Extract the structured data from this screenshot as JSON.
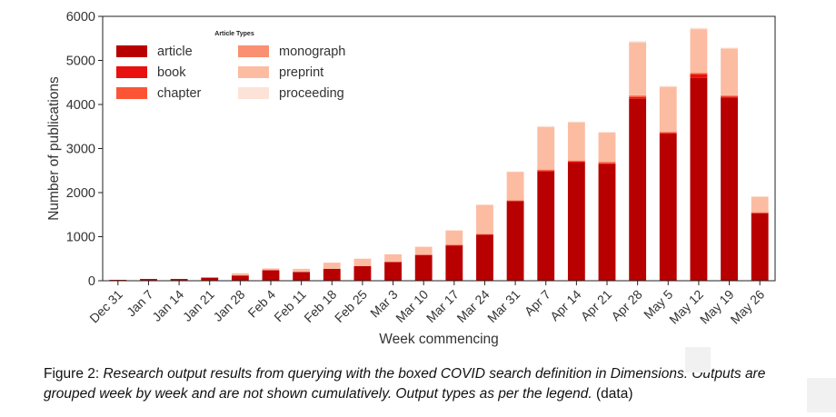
{
  "chart_data": {
    "type": "bar",
    "stacked": true,
    "xlabel": "Week commencing",
    "ylabel": "Number of publications",
    "ylim": [
      0,
      6000
    ],
    "yticks": [
      0,
      1000,
      2000,
      3000,
      4000,
      5000,
      6000
    ],
    "grid": false,
    "legend": {
      "title": "Article Types",
      "placement": "top-left",
      "columns": 2
    },
    "categories": [
      "Dec 31",
      "Jan 7",
      "Jan 14",
      "Jan 21",
      "Jan 28",
      "Feb 4",
      "Feb 11",
      "Feb 18",
      "Feb 25",
      "Mar 3",
      "Mar 10",
      "Mar 17",
      "Mar 24",
      "Mar 31",
      "Apr 7",
      "Apr 14",
      "Apr 21",
      "Apr 28",
      "May 5",
      "May 12",
      "May 19",
      "May 26"
    ],
    "series": [
      {
        "name": "article",
        "color": "#b80000",
        "values": [
          20,
          40,
          40,
          70,
          120,
          240,
          200,
          270,
          330,
          420,
          580,
          800,
          1040,
          1800,
          2480,
          2680,
          2640,
          4130,
          3330,
          4600,
          4160,
          1530
        ]
      },
      {
        "name": "book",
        "color": "#e8110f",
        "values": [
          0,
          0,
          0,
          0,
          0,
          0,
          0,
          0,
          0,
          10,
          10,
          10,
          10,
          15,
          20,
          25,
          25,
          40,
          20,
          80,
          20,
          10
        ]
      },
      {
        "name": "chapter",
        "color": "#fb5535",
        "values": [
          0,
          0,
          0,
          0,
          0,
          0,
          0,
          0,
          0,
          0,
          0,
          10,
          10,
          10,
          20,
          20,
          25,
          30,
          20,
          30,
          20,
          10
        ]
      },
      {
        "name": "monograph",
        "color": "#f99071",
        "values": [
          0,
          0,
          0,
          0,
          0,
          0,
          0,
          0,
          0,
          0,
          0,
          0,
          0,
          5,
          10,
          10,
          10,
          10,
          10,
          10,
          10,
          5
        ]
      },
      {
        "name": "preprint",
        "color": "#fcbca2",
        "values": [
          0,
          0,
          0,
          10,
          50,
          40,
          70,
          140,
          170,
          170,
          180,
          320,
          660,
          640,
          960,
          860,
          660,
          1200,
          1020,
          990,
          1060,
          350
        ]
      },
      {
        "name": "proceeding",
        "color": "#fde3d7",
        "values": [
          0,
          0,
          0,
          0,
          0,
          0,
          0,
          0,
          0,
          0,
          0,
          10,
          10,
          10,
          20,
          20,
          20,
          30,
          20,
          30,
          20,
          10
        ]
      }
    ]
  },
  "caption": {
    "lead": "Figure 2: ",
    "body": "Research output results from querying with the boxed COVID search definition in Dimensions.  Outputs are grouped week by week and are not shown cumulatively. Output types as per the legend.",
    "tail": " (data)"
  }
}
